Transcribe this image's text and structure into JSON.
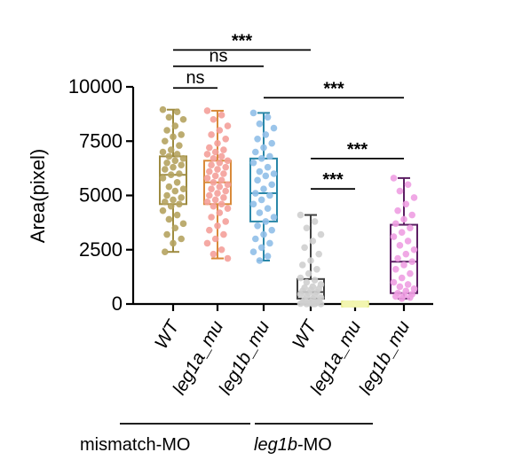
{
  "chart_data": {
    "type": "box",
    "ylabel": "Area(pixel)",
    "ylim": [
      0,
      10000
    ],
    "yticks": [
      "0",
      "2500",
      "5000",
      "7500",
      "10000"
    ],
    "ytick_values": [
      0,
      2500,
      5000,
      7500,
      10000
    ],
    "groups": [
      {
        "label": "mismatch-MO",
        "label_italic": "",
        "label_rest": "mismatch-MO"
      },
      {
        "label": "leg1b-MO",
        "label_italic": "leg1b",
        "label_rest": "-MO"
      }
    ],
    "series": [
      {
        "name": "WT",
        "group": 0,
        "color": "#b5a361",
        "box_color": "#9e8b40",
        "min": 2400,
        "q1": 4600,
        "median": 5950,
        "q3": 6800,
        "max": 8950,
        "points": [
          8950,
          8850,
          8600,
          8500,
          8200,
          8000,
          7800,
          7700,
          7500,
          7300,
          7100,
          7000,
          6900,
          6800,
          6700,
          6600,
          6500,
          6400,
          6300,
          6200,
          6000,
          5950,
          5800,
          5600,
          5400,
          5300,
          5200,
          5000,
          4900,
          4800,
          4700,
          4600,
          4500,
          4300,
          4100,
          3900,
          3700,
          3500,
          3200,
          3000,
          2800,
          2400
        ]
      },
      {
        "name": "leg1a_mu",
        "group": 0,
        "color": "#f4a09a",
        "box_color": "#d98a3a",
        "min": 2100,
        "q1": 4600,
        "median": 5600,
        "q3": 6600,
        "max": 8900,
        "points": [
          8900,
          8700,
          8500,
          8200,
          8000,
          7800,
          7600,
          7400,
          7200,
          7100,
          7000,
          6900,
          6800,
          6700,
          6600,
          6500,
          6400,
          6300,
          6200,
          6100,
          6000,
          5900,
          5800,
          5700,
          5600,
          5500,
          5400,
          5300,
          5200,
          5100,
          5000,
          4900,
          4800,
          4700,
          4600,
          4500,
          4400,
          4200,
          4000,
          3800,
          3600,
          3400,
          3200,
          3000,
          2800,
          2500,
          2300,
          2100
        ]
      },
      {
        "name": "leg1b_mu",
        "group": 0,
        "color": "#90bfe8",
        "box_color": "#2a87a8",
        "min": 2000,
        "q1": 3800,
        "median": 5100,
        "q3": 6700,
        "max": 8800,
        "points": [
          8800,
          8600,
          8300,
          8100,
          7800,
          7600,
          7400,
          7200,
          7000,
          6800,
          6700,
          6500,
          6300,
          6100,
          6000,
          5900,
          5700,
          5500,
          5300,
          5100,
          5000,
          4800,
          4600,
          4400,
          4200,
          4000,
          3800,
          3600,
          3400,
          3200,
          3000,
          2800,
          2600,
          2400,
          2200,
          2000
        ]
      },
      {
        "name": "WT",
        "group": 1,
        "color": "#cfcfcf",
        "box_color": "#404040",
        "min": 0,
        "q1": 250,
        "median": 550,
        "q3": 1150,
        "max": 4100,
        "points": [
          4100,
          3800,
          3500,
          3200,
          2900,
          2600,
          2300,
          2000,
          1800,
          1600,
          1400,
          1200,
          1100,
          1000,
          900,
          800,
          750,
          700,
          650,
          600,
          550,
          500,
          450,
          400,
          350,
          300,
          250,
          200,
          150,
          100,
          80,
          60,
          40,
          20,
          0,
          0,
          0,
          0
        ]
      },
      {
        "name": "leg1a_mu",
        "group": 1,
        "color": "#f2f5b0",
        "box_color": "#e4ea7e",
        "min": 0,
        "q1": 0,
        "median": 0,
        "q3": 0,
        "max": 0,
        "points": [
          0,
          0,
          0,
          0,
          0,
          0,
          0,
          0,
          0,
          0
        ]
      },
      {
        "name": "leg1b_mu",
        "group": 1,
        "color": "#ee9fe2",
        "box_color": "#5c1f63",
        "min": 250,
        "q1": 500,
        "median": 1950,
        "q3": 3650,
        "max": 5800,
        "points": [
          5800,
          5500,
          5200,
          4900,
          4600,
          4300,
          4100,
          3900,
          3700,
          3500,
          3300,
          3100,
          2900,
          2700,
          2500,
          2300,
          2100,
          1950,
          1800,
          1600,
          1400,
          1200,
          1000,
          900,
          800,
          700,
          600,
          500,
          450,
          400,
          350,
          300,
          250
        ]
      }
    ],
    "significance": [
      {
        "from": 0,
        "to": 3,
        "label": "***",
        "y": 11700
      },
      {
        "from": 0,
        "to": 2,
        "label": "ns",
        "y": 10950
      },
      {
        "from": 0,
        "to": 1,
        "label": "ns",
        "y": 9950
      },
      {
        "from": 2,
        "to": 5,
        "label": "***",
        "y": 9500
      },
      {
        "from": 3,
        "to": 5,
        "label": "***",
        "y": 6700
      },
      {
        "from": 3,
        "to": 4,
        "label": "***",
        "y": 5300
      }
    ]
  }
}
